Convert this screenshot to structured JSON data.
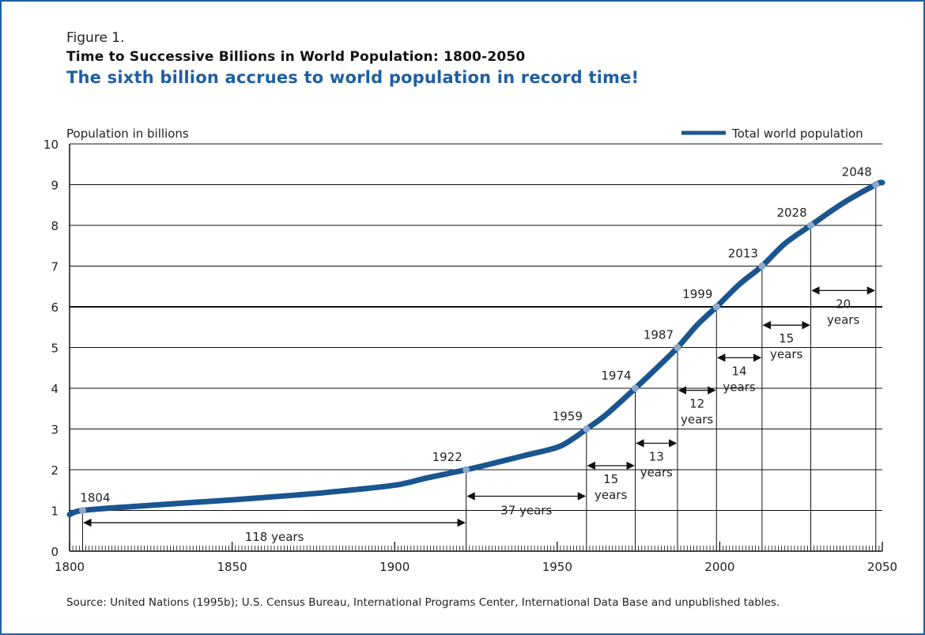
{
  "figure": {
    "label": "Figure 1.",
    "title": "Time to Successive Billions in World Population:  1800-2050",
    "subtitle": "The sixth billion accrues to world population in record time!",
    "source": "Source:  United Nations (1995b); U.S. Census Bureau, International Programs Center, International Data Base and unpublished tables."
  },
  "chart_data": {
    "type": "line",
    "ylabel": "Population in billions",
    "xlim": [
      1800,
      2050
    ],
    "ylim": [
      0,
      10
    ],
    "x_ticks": [
      1800,
      1850,
      1900,
      1950,
      2000,
      2050
    ],
    "y_ticks": [
      0,
      1,
      2,
      3,
      4,
      5,
      6,
      7,
      8,
      9,
      10
    ],
    "grid": "horizontal",
    "legend_position": "top-right",
    "line_color": "#1a5590",
    "marker_color": "#8fa9c9",
    "series": [
      {
        "name": "Total world population",
        "points": [
          [
            1800,
            0.9
          ],
          [
            1804,
            1.0
          ],
          [
            1820,
            1.1
          ],
          [
            1850,
            1.26
          ],
          [
            1870,
            1.38
          ],
          [
            1880,
            1.45
          ],
          [
            1900,
            1.62
          ],
          [
            1910,
            1.8
          ],
          [
            1922,
            2.0
          ],
          [
            1930,
            2.15
          ],
          [
            1940,
            2.35
          ],
          [
            1950,
            2.55
          ],
          [
            1955,
            2.77
          ],
          [
            1959,
            3.0
          ],
          [
            1965,
            3.35
          ],
          [
            1974,
            4.0
          ],
          [
            1980,
            4.45
          ],
          [
            1987,
            5.0
          ],
          [
            1993,
            5.55
          ],
          [
            1999,
            6.0
          ],
          [
            2006,
            6.55
          ],
          [
            2013,
            7.0
          ],
          [
            2020,
            7.55
          ],
          [
            2028,
            8.0
          ],
          [
            2038,
            8.55
          ],
          [
            2048,
            9.0
          ],
          [
            2050,
            9.05
          ]
        ]
      }
    ],
    "milestones": [
      {
        "year": 1804,
        "billion": 1,
        "label": "1804"
      },
      {
        "year": 1922,
        "billion": 2,
        "label": "1922"
      },
      {
        "year": 1959,
        "billion": 3,
        "label": "1959"
      },
      {
        "year": 1974,
        "billion": 4,
        "label": "1974"
      },
      {
        "year": 1987,
        "billion": 5,
        "label": "1987"
      },
      {
        "year": 1999,
        "billion": 6,
        "label": "1999"
      },
      {
        "year": 2013,
        "billion": 7,
        "label": "2013"
      },
      {
        "year": 2028,
        "billion": 8,
        "label": "2028"
      },
      {
        "year": 2048,
        "billion": 9,
        "label": "2048"
      }
    ],
    "intervals": [
      {
        "from": 1804,
        "to": 1922,
        "y": 0.7,
        "text": [
          "118 years"
        ]
      },
      {
        "from": 1922,
        "to": 1959,
        "y": 1.35,
        "text": [
          "37 years"
        ]
      },
      {
        "from": 1959,
        "to": 1974,
        "y": 2.1,
        "text": [
          "15",
          "years"
        ]
      },
      {
        "from": 1974,
        "to": 1987,
        "y": 2.65,
        "text": [
          "13",
          "years"
        ]
      },
      {
        "from": 1987,
        "to": 1999,
        "y": 3.95,
        "text": [
          "12",
          "years"
        ]
      },
      {
        "from": 1999,
        "to": 2013,
        "y": 4.75,
        "text": [
          "14",
          "years"
        ]
      },
      {
        "from": 2013,
        "to": 2028,
        "y": 5.55,
        "text": [
          "15",
          "years"
        ]
      },
      {
        "from": 2028,
        "to": 2048,
        "y": 6.4,
        "text": [
          "20",
          "years"
        ]
      }
    ]
  }
}
